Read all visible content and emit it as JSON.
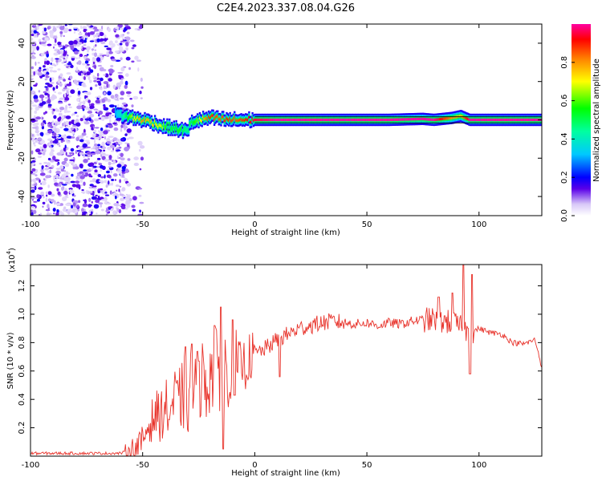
{
  "title": "C2E4.2023.337.08.04.G26",
  "chart_data": [
    {
      "type": "heatmap",
      "xlabel": "Height of straight line (km)",
      "ylabel": "Frequency (Hz)",
      "xlim": [
        -100,
        128
      ],
      "ylim": [
        -50,
        50
      ],
      "xticks": [
        -100,
        -50,
        0,
        50,
        100
      ],
      "yticks": [
        -40,
        -20,
        0,
        20,
        40
      ],
      "colorbar": {
        "label": "Normalized spectral amplitude",
        "range": [
          0,
          1
        ],
        "ticks": [
          "0.0",
          "0.2",
          "0.4",
          "0.6",
          "0.8"
        ]
      },
      "noise_region_km": [
        -100,
        -56
      ],
      "ridge": {
        "x": [
          -62,
          -58,
          -54,
          -50,
          -46,
          -42,
          -38,
          -34,
          -30,
          -28,
          -24,
          -20,
          -16,
          -12,
          -8,
          -4,
          0,
          10,
          20,
          40,
          60,
          75,
          80,
          88,
          92,
          96,
          100,
          128
        ],
        "freq_hz": [
          3,
          2,
          1,
          0,
          -1,
          -3,
          -4,
          -5,
          -6,
          -1,
          0,
          1,
          0.5,
          0,
          0,
          0,
          0,
          0,
          0,
          0,
          0,
          0.5,
          0,
          1,
          2,
          0,
          0,
          0
        ],
        "amplitude": [
          0.3,
          0.45,
          0.7,
          0.8,
          0.75,
          0.7,
          0.5,
          0.55,
          0.45,
          0.5,
          0.7,
          0.9,
          0.85,
          0.9,
          0.85,
          0.9,
          0.95,
          1.0,
          1.0,
          1.0,
          1.0,
          1.0,
          1.0,
          0.8,
          0.75,
          1.0,
          1.0,
          1.0
        ]
      }
    },
    {
      "type": "line",
      "xlabel": "Height of straight line (km)",
      "ylabel": "SNR (10 * v/v)",
      "yscale_label": "(x10",
      "yscale_exp": "4",
      "yscale_close": ")",
      "xlim": [
        -100,
        128
      ],
      "ylim": [
        0,
        1.35
      ],
      "xticks": [
        -100,
        -50,
        0,
        50,
        100
      ],
      "yticks": [
        0.2,
        0.4,
        0.6,
        0.8,
        1.0,
        1.2
      ],
      "ytick_labels": [
        "0.2",
        "0.4",
        "0.6",
        "0.8",
        "1.0",
        "1.2"
      ],
      "series": [
        {
          "color": "#e8332b",
          "x": [
            -100,
            -90,
            -80,
            -70,
            -60,
            -56,
            -52,
            -50,
            -48,
            -46,
            -44,
            -42,
            -40,
            -38,
            -36,
            -34,
            -32,
            -30,
            -28,
            -26,
            -24,
            -22,
            -20,
            -18,
            -16,
            -14,
            -12,
            -10,
            -8,
            -6,
            -4,
            -2,
            0,
            5,
            10,
            15,
            20,
            25,
            30,
            35,
            40,
            45,
            50,
            55,
            60,
            65,
            70,
            75,
            80,
            85,
            90,
            92,
            94,
            96,
            100,
            105,
            110,
            115,
            120,
            125,
            128
          ],
          "y": [
            0.02,
            0.02,
            0.02,
            0.02,
            0.02,
            0.04,
            0.07,
            0.1,
            0.2,
            0.25,
            0.3,
            0.28,
            0.35,
            0.3,
            0.4,
            0.35,
            0.45,
            0.4,
            0.5,
            0.45,
            0.55,
            0.52,
            0.58,
            0.6,
            0.62,
            0.58,
            0.65,
            0.6,
            0.62,
            0.66,
            0.64,
            0.7,
            0.72,
            0.76,
            0.82,
            0.86,
            0.9,
            0.92,
            0.94,
            0.95,
            0.94,
            0.93,
            0.94,
            0.92,
            0.94,
            0.93,
            0.95,
            0.96,
            0.96,
            0.95,
            0.93,
            0.9,
            0.88,
            0.87,
            0.9,
            0.87,
            0.86,
            0.8,
            0.79,
            0.82,
            0.63
          ],
          "spikes": [
            {
              "x": -31,
              "y": 0.77
            },
            {
              "x": -28,
              "y": 0.79
            },
            {
              "x": -25,
              "y": 0.67
            },
            {
              "x": -18,
              "y": 0.92
            },
            {
              "x": -15,
              "y": 1.05
            },
            {
              "x": -14,
              "y": 0.05
            },
            {
              "x": -10,
              "y": 0.96
            },
            {
              "x": -9,
              "y": 0.43
            },
            {
              "x": 11,
              "y": 0.56
            },
            {
              "x": 82,
              "y": 1.12
            },
            {
              "x": 88,
              "y": 1.15
            },
            {
              "x": 93,
              "y": 1.35
            },
            {
              "x": 97,
              "y": 1.28
            },
            {
              "x": 96,
              "y": 0.58
            }
          ]
        }
      ]
    }
  ]
}
